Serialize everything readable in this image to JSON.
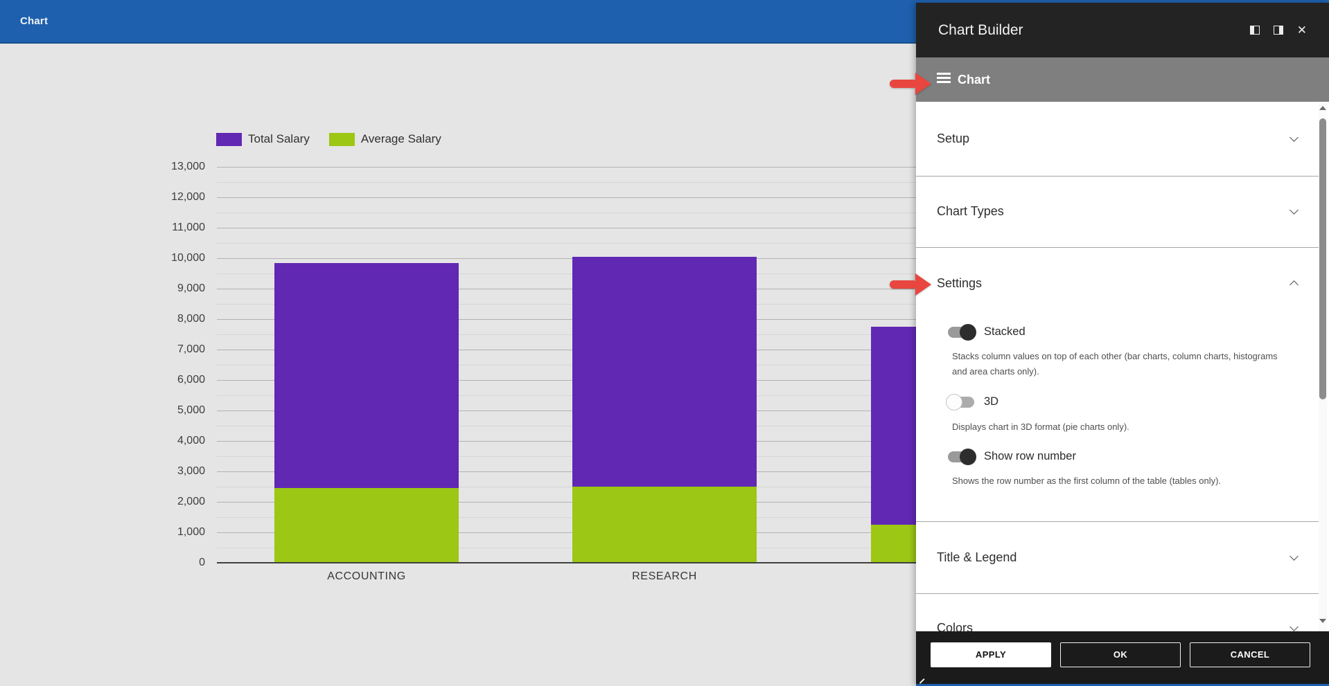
{
  "app_header": {
    "title": "Chart"
  },
  "chart_data": {
    "type": "bar",
    "stacked": true,
    "title": "",
    "xlabel": "",
    "ylabel": "",
    "categories": [
      "ACCOUNTING",
      "RESEARCH",
      ""
    ],
    "series": [
      {
        "name": "Total Salary",
        "color": "#6128b4",
        "values": [
          9850,
          10050,
          7750
        ]
      },
      {
        "name": "Average Salary",
        "color": "#9cc714",
        "values": [
          2450,
          2500,
          1250
        ]
      }
    ],
    "ylim": [
      0,
      13000
    ],
    "y_major_interval": 1000,
    "y_minor_interval": 500,
    "grid": true,
    "legend_position": "top-left"
  },
  "panel": {
    "title": "Chart Builder",
    "window_controls": {
      "close_icon": "✕"
    },
    "menu": {
      "label": "Chart"
    },
    "sections": [
      {
        "label": "Setup",
        "expanded": false
      },
      {
        "label": "Chart Types",
        "expanded": false
      },
      {
        "label": "Settings",
        "expanded": true
      },
      {
        "label": "Title & Legend",
        "expanded": false
      },
      {
        "label": "Colors",
        "expanded": false
      }
    ],
    "toggles": [
      {
        "label": "Stacked",
        "state": "on",
        "description": "Stacks column values on top of each other (bar charts, column charts, histograms and area charts only)."
      },
      {
        "label": "3D",
        "state": "off",
        "description": "Displays chart in 3D format (pie charts only)."
      },
      {
        "label": "Show row number",
        "state": "on",
        "description": "Shows the row number as the first column of the table (tables only)."
      }
    ],
    "buttons": {
      "apply": "APPLY",
      "ok": "OK",
      "cancel": "CANCEL"
    }
  },
  "annotations": {
    "arrow_color": "#e8463f",
    "targets": [
      "chart-menu-bar",
      "settings-section"
    ]
  }
}
